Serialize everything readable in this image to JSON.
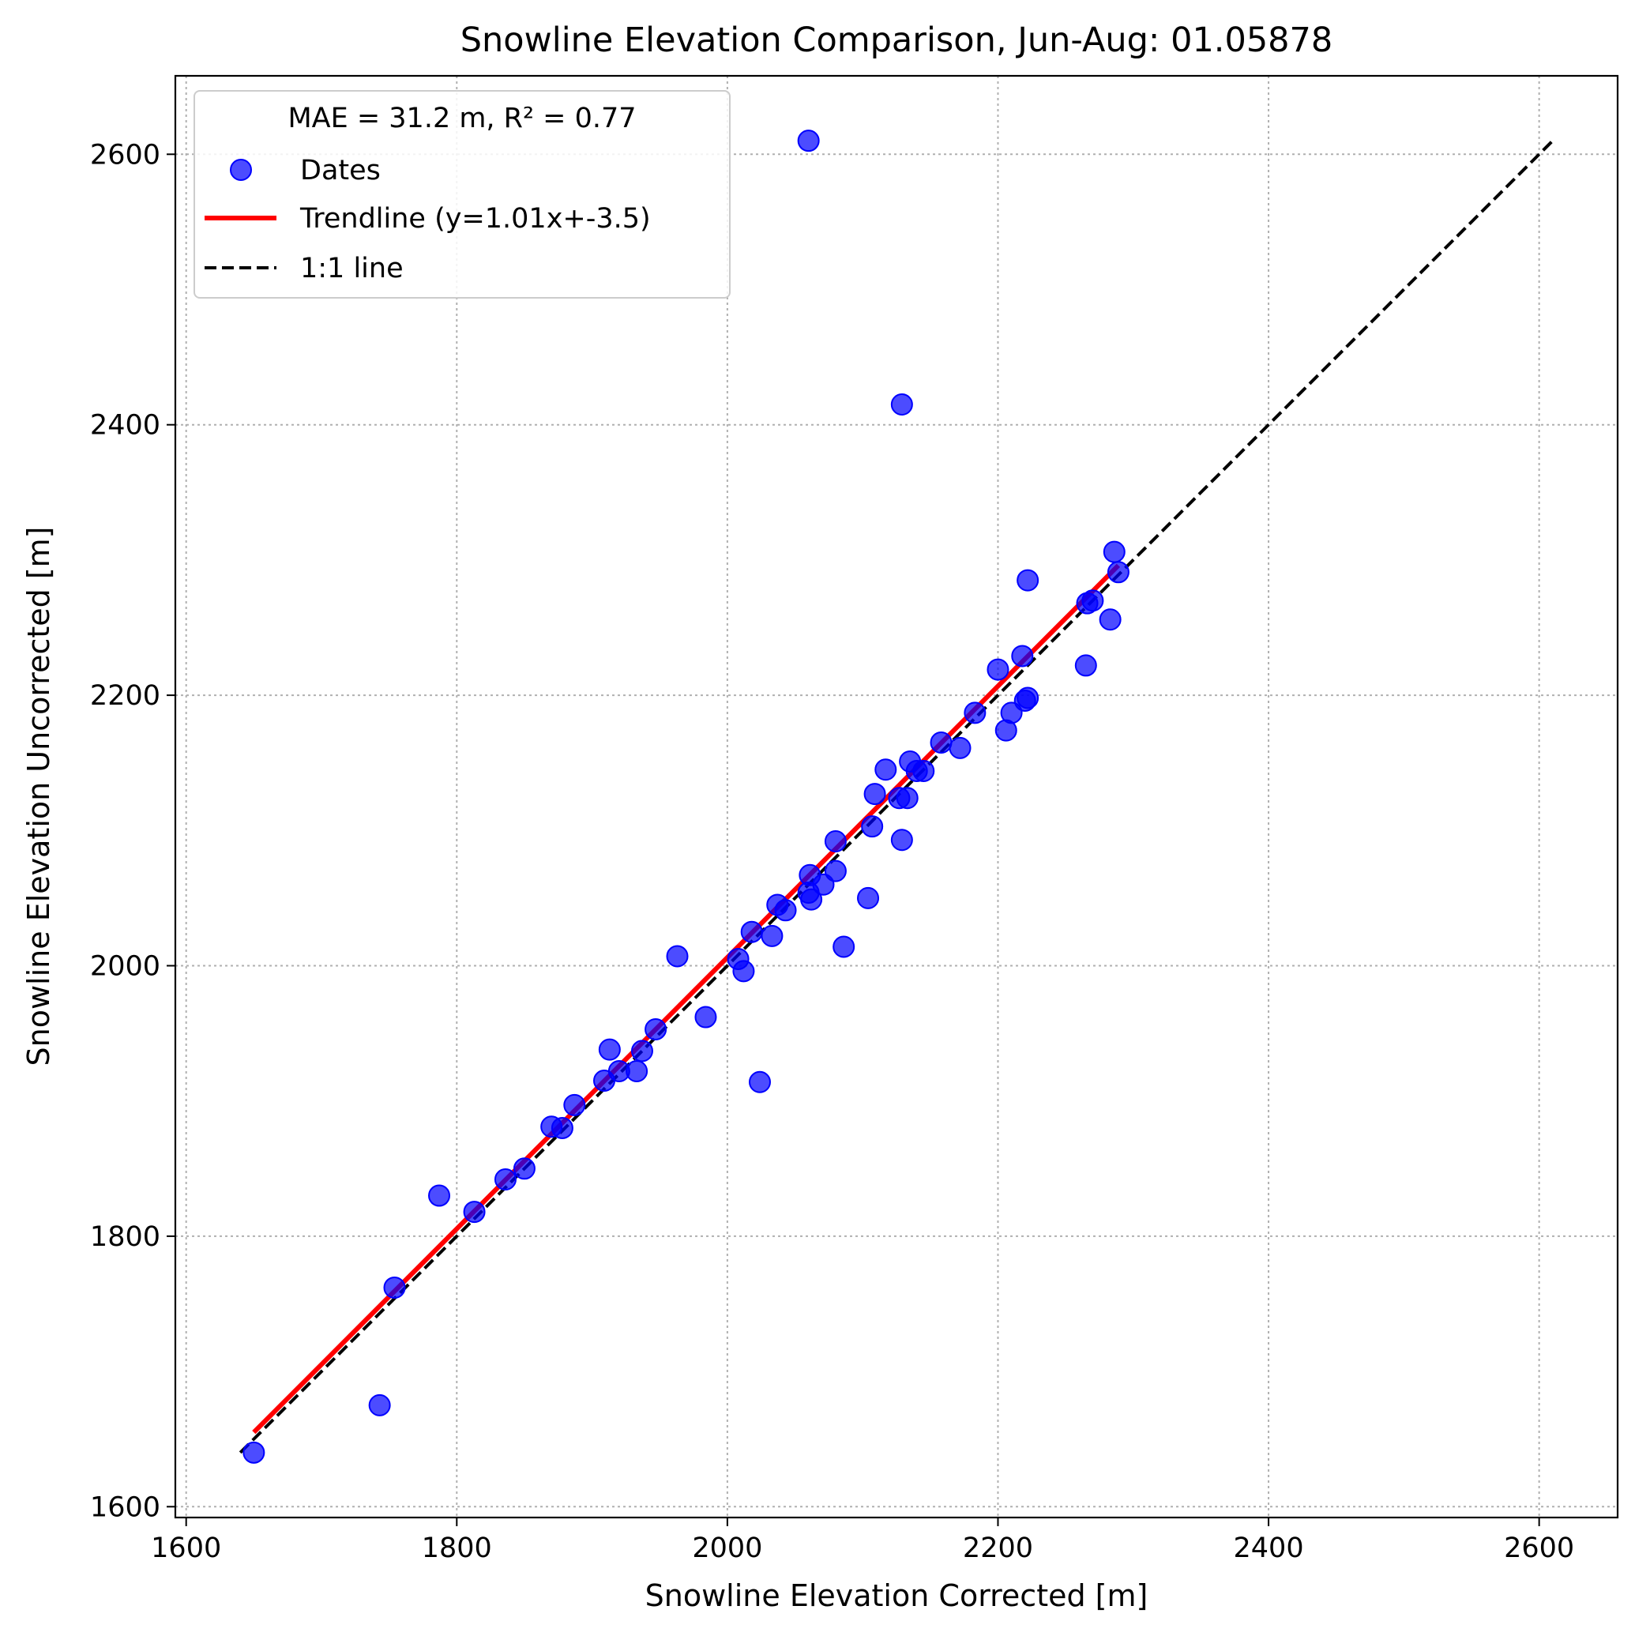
{
  "chart_data": {
    "type": "scatter",
    "title": "Snowline Elevation Comparison, Jun-Aug: 01.05878",
    "xlabel": "Snowline Elevation Corrected [m]",
    "ylabel": "Snowline Elevation Uncorrected [m]",
    "xlim": [
      1592,
      2658
    ],
    "ylim": [
      1592,
      2658
    ],
    "xticks": [
      1600,
      1800,
      2000,
      2200,
      2400,
      2600
    ],
    "yticks": [
      1600,
      1800,
      2000,
      2200,
      2400,
      2600
    ],
    "xtick_labels": [
      "1600",
      "1800",
      "2000",
      "2200",
      "2400",
      "2600"
    ],
    "ytick_labels": [
      "1600",
      "1800",
      "2000",
      "2200",
      "2400",
      "2600"
    ],
    "grid": true,
    "legend_position": "top-left",
    "legend_title": "MAE = 31.2 m,  R² = 0.77",
    "series": [
      {
        "name": "Dates",
        "type": "scatter",
        "color": "#0000ff",
        "points": [
          [
            1650,
            1640
          ],
          [
            1743,
            1675
          ],
          [
            1754,
            1762
          ],
          [
            1787,
            1830
          ],
          [
            1813,
            1818
          ],
          [
            1836,
            1842
          ],
          [
            1850,
            1850
          ],
          [
            1870,
            1881
          ],
          [
            1878,
            1880
          ],
          [
            1887,
            1897
          ],
          [
            1909,
            1915
          ],
          [
            1913,
            1938
          ],
          [
            1920,
            1922
          ],
          [
            1933,
            1922
          ],
          [
            1937,
            1937
          ],
          [
            1947,
            1953
          ],
          [
            1963,
            2007
          ],
          [
            1984,
            1962
          ],
          [
            2008,
            2005
          ],
          [
            2012,
            1996
          ],
          [
            2018,
            2025
          ],
          [
            2024,
            1914
          ],
          [
            2033,
            2022
          ],
          [
            2037,
            2045
          ],
          [
            2043,
            2041
          ],
          [
            2060,
            2054
          ],
          [
            2061,
            2067
          ],
          [
            2062,
            2049
          ],
          [
            2071,
            2060
          ],
          [
            2080,
            2070
          ],
          [
            2080,
            2092
          ],
          [
            2086,
            2014
          ],
          [
            2104,
            2050
          ],
          [
            2107,
            2103
          ],
          [
            2109,
            2127
          ],
          [
            2117,
            2145
          ],
          [
            2127,
            2124
          ],
          [
            2129,
            2093
          ],
          [
            2133,
            2124
          ],
          [
            2135,
            2151
          ],
          [
            2140,
            2144
          ],
          [
            2145,
            2144
          ],
          [
            2158,
            2165
          ],
          [
            2172,
            2161
          ],
          [
            2183,
            2187
          ],
          [
            2200,
            2219
          ],
          [
            2206,
            2174
          ],
          [
            2210,
            2187
          ],
          [
            2218,
            2229
          ],
          [
            2220,
            2196
          ],
          [
            2222,
            2198
          ],
          [
            2222,
            2285
          ],
          [
            2265,
            2222
          ],
          [
            2266,
            2268
          ],
          [
            2270,
            2270
          ],
          [
            2283,
            2256
          ],
          [
            2286,
            2306
          ],
          [
            2289,
            2291
          ],
          [
            2060,
            2610
          ],
          [
            2129,
            2415
          ]
        ]
      },
      {
        "name": "Trendline (y=1.01x+-3.5)",
        "type": "line",
        "color": "#ff0000",
        "x": [
          1650,
          2289
        ],
        "y": [
          1655,
          2296
        ]
      },
      {
        "name": "1:1 line",
        "type": "line",
        "style": "dashed",
        "color": "#000000",
        "x": [
          1640,
          2610
        ],
        "y": [
          1640,
          2610
        ]
      }
    ]
  }
}
